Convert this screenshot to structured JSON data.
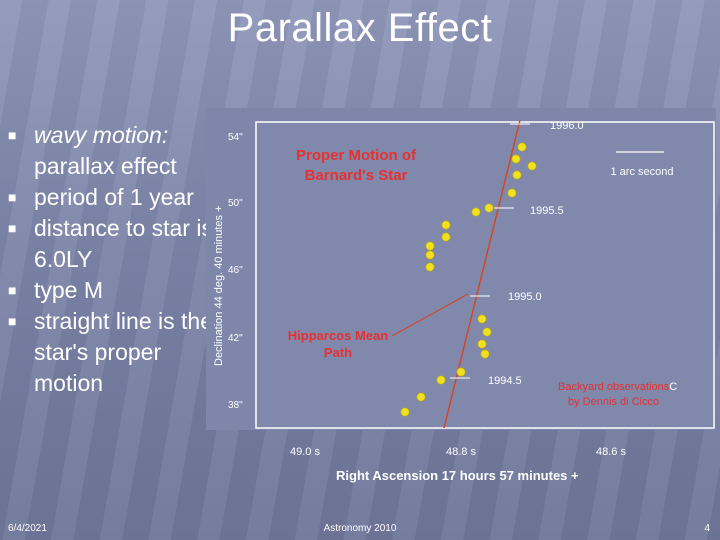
{
  "slide": {
    "title": "Parallax Effect",
    "bullets": [
      {
        "text": "wavy motion: parallax effect",
        "italic_part": "wavy motion:",
        "rest": "parallax effect"
      },
      {
        "text": "period of 1 year"
      },
      {
        "text": "distance to star is 6.0LY"
      },
      {
        "text": "type M"
      },
      {
        "text": "straight line is the star's proper motion"
      }
    ],
    "footer": {
      "date": "6/4/2021",
      "course": "Astronomy 2010",
      "page": "4"
    }
  },
  "figure": {
    "heading_line1": "Proper Motion of",
    "heading_line2": "Barnard's Star",
    "path_label_line1": "Hipparcos Mean",
    "path_label_line2": "Path",
    "scale_label": "1 arc second",
    "credit_line1": "Backyard observations",
    "credit_line2": "by Dennis di Cicco",
    "credit_marker": "C",
    "y_axis_title": "Declination 44 deg. 40 minutes +",
    "x_axis_title": "Right Ascension 17 hours 57 minutes +",
    "y_ticks": [
      "54\"",
      "50\"",
      "46\"",
      "42\"",
      "38\""
    ],
    "x_ticks": [
      "49.0 s",
      "48.8 s",
      "48.6 s"
    ],
    "epochs": [
      "1996.0",
      "1995.5",
      "1995.0",
      "1994.5"
    ],
    "colors": {
      "star": "#f0e020",
      "heading": "#e83030",
      "path": "#d04828",
      "labels": "#ffffff"
    }
  }
}
